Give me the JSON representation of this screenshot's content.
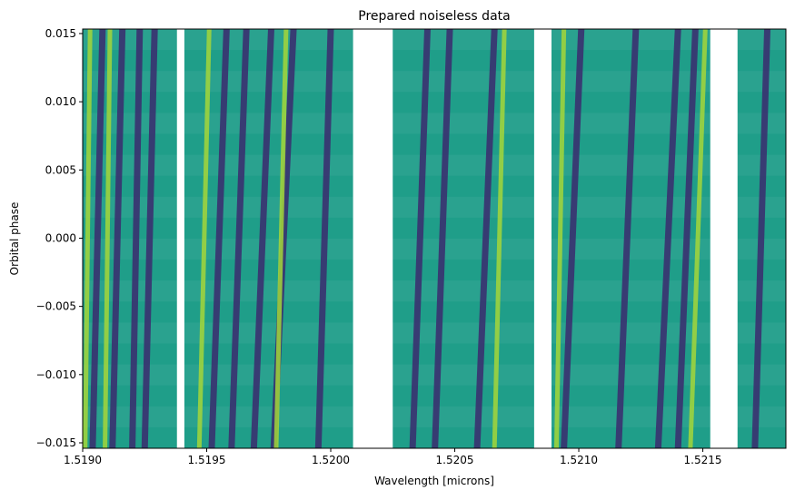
{
  "chart_data": {
    "type": "heatmap",
    "title": "Prepared noiseless data",
    "x_label": "Wavelength [microns]",
    "y_label": "Orbital phase",
    "xlim": [
      1.519,
      1.521835
    ],
    "ylim": [
      -0.0154,
      0.01533
    ],
    "xticks": [
      {
        "value": 1.519,
        "label": "1.5190"
      },
      {
        "value": 1.5195,
        "label": "1.5195"
      },
      {
        "value": 1.52,
        "label": "1.5200"
      },
      {
        "value": 1.5205,
        "label": "1.5205"
      },
      {
        "value": 1.521,
        "label": "1.5210"
      },
      {
        "value": 1.5215,
        "label": "1.5215"
      }
    ],
    "yticks": [
      {
        "value": -0.015,
        "label": "−0.015"
      },
      {
        "value": -0.01,
        "label": "−0.010"
      },
      {
        "value": -0.005,
        "label": "−0.005"
      },
      {
        "value": 0,
        "label": "0.000"
      },
      0.005,
      {
        "value": 0.01,
        "label": "0.010"
      },
      0.015
    ],
    "background_color": "#1f9e89",
    "segments": [
      [
        1.519,
        1.51938
      ],
      [
        1.51941,
        1.52009
      ],
      [
        1.52025,
        1.52082
      ],
      [
        1.52089,
        1.52153
      ],
      [
        1.52164,
        1.521835
      ]
    ],
    "absorption_lines": {
      "color": "#3b2a6e",
      "x_bottom": [
        1.51904,
        1.51912,
        1.5192,
        1.51925,
        1.51952,
        1.5196,
        1.51969,
        1.51977,
        1.51995,
        1.52033,
        1.52042,
        1.52059,
        1.52094,
        1.52116,
        1.52132,
        1.5214,
        1.52171
      ],
      "x_top": [
        1.51908,
        1.51916,
        1.51923,
        1.51929,
        1.51958,
        1.51966,
        1.51976,
        1.51985,
        1.52,
        1.52039,
        1.52048,
        1.52066,
        1.52101,
        1.52123,
        1.5214,
        1.52147,
        1.52176
      ]
    },
    "emission_lines": {
      "color": "#a5d63a",
      "x_bottom": [
        1.51901,
        1.51909,
        1.51947,
        1.51978,
        1.52066,
        1.52091,
        1.52145
      ],
      "x_top": [
        1.51903,
        1.51911,
        1.51951,
        1.51982,
        1.5207,
        1.52094,
        1.52151
      ]
    }
  }
}
